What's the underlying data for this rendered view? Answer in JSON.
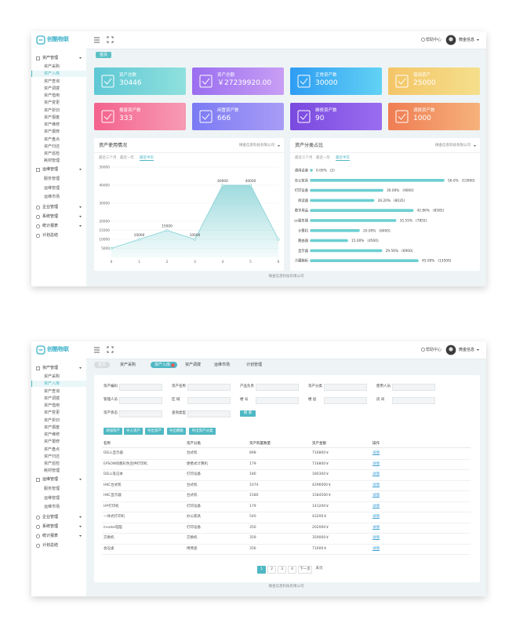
{
  "app": {
    "logo": "创酷物联",
    "help": "帮助中心",
    "user": "微金信息",
    "footer": "微金信息科技有限公司",
    "menu": [
      {
        "label": "资产管理",
        "children": [
          "资产采购",
          "资产入库",
          "资产查询",
          "资产调拨",
          "资产借用",
          "资产变更",
          "资产折旧",
          "资产报废",
          "资产维修",
          "资产报修",
          "资产盘点",
          "资产归还",
          "资产巡检",
          "耗材管理"
        ]
      },
      {
        "label": "运维管理",
        "children": [
          "服务管理",
          "运维管理",
          "运维市场"
        ]
      },
      {
        "label": "企业管理",
        "children": []
      },
      {
        "label": "系统管理",
        "children": []
      },
      {
        "label": "统计报表",
        "children": []
      },
      {
        "label": "计划总结",
        "children": []
      }
    ]
  },
  "dashboard": {
    "breadcrumb": "首页",
    "cards": [
      {
        "label": "资产总数",
        "value": "30446",
        "colors": [
          "#5ec8d5",
          "#8fe0dd"
        ]
      },
      {
        "label": "资产总额",
        "value": "￥27239920.00",
        "colors": [
          "#9a6ef0",
          "#c89ef4"
        ]
      },
      {
        "label": "正常资产数",
        "value": "30000",
        "colors": [
          "#2e9cf3",
          "#62d2f4"
        ]
      },
      {
        "label": "借用资产",
        "value": "25000",
        "colors": [
          "#f4c567",
          "#f5df8c"
        ]
      },
      {
        "label": "报废资产数",
        "value": "333",
        "colors": [
          "#f4628c",
          "#f79bb3"
        ]
      },
      {
        "label": "闲置资产数",
        "value": "666",
        "colors": [
          "#7b7af4",
          "#a89df5"
        ]
      },
      {
        "label": "维修资产数",
        "value": "90",
        "colors": [
          "#7a49df",
          "#9a6def"
        ]
      },
      {
        "label": "调拨资产数",
        "value": "1000",
        "colors": [
          "#ef7d53",
          "#f6b27b"
        ]
      }
    ],
    "usage": {
      "type": "area",
      "title": "资产使用情况",
      "company": "微金信息科技有限公司",
      "periods": [
        "最近三个月",
        "最近一年",
        "最近半年"
      ],
      "x": [
        0,
        1,
        2,
        3,
        4,
        5,
        6
      ],
      "values": [
        5000,
        10000,
        15000,
        10000,
        40000,
        40000,
        10000
      ],
      "xlim": [
        0,
        6
      ],
      "xticks": [
        0,
        1,
        2,
        3,
        4,
        5,
        6
      ],
      "ylim": [
        0,
        50000
      ],
      "yticks": [
        5000,
        10000,
        15000,
        20000,
        30000,
        40000,
        50000
      ],
      "color": "#7fcfd3"
    },
    "categories": {
      "type": "bar",
      "orientation": "horizontal",
      "title": "资产分类占比",
      "company": "微金信息科技有限公司",
      "periods": [
        "最近三个月",
        "最近一年",
        "最近半年"
      ],
      "categories": [
        "通用设备",
        "办公家具",
        "打印设备",
        "阅读器",
        "数字用品",
        "oc服务器",
        "计算机",
        "路由器",
        "显示器",
        "冷藏箱柜"
      ],
      "values": [
        0,
        56,
        30,
        26.2,
        42.86,
        35.55,
        20,
        15,
        29.56,
        45
      ],
      "value_labels": [
        "0.00%",
        "56.0%",
        "30.00%",
        "26.20%",
        "42.86%",
        "35.55%",
        "20.00%",
        "15.00%",
        "29.56%",
        "45.00%"
      ],
      "count_labels": [
        "(2)",
        "(15000)",
        "(9000)",
        "(8035)",
        "(8585)",
        "(7855)",
        "(6000)",
        "(4500)",
        "(6900)",
        "(13500)"
      ],
      "xlim": [
        0,
        60
      ],
      "color": "#6ccfd2"
    }
  },
  "list": {
    "tabs": [
      "首页",
      "资产采购",
      "资产入库",
      "资产调拨",
      "运维市场",
      "计划管理"
    ],
    "filters": [
      "资产编码",
      "资产名称",
      "产品负责",
      "资产分类",
      "使用人员",
      "管理人员",
      "区 域",
      "楼 号",
      "楼 层",
      "房 间",
      "资产状态",
      "查询类型"
    ],
    "search": "搜 索",
    "actions": [
      "添加资产",
      "导入资产",
      "导出资产",
      "导出模板",
      "导出资产分类"
    ],
    "table": {
      "columns": [
        "名称",
        "资产分类",
        "资产购置数量",
        "资产金额",
        "操作"
      ],
      "rows": [
        [
          "DELL显示器",
          "台式机",
          "898",
          "716800￥",
          "详情"
        ],
        [
          "EPSON喷墨彩色连供打印机",
          "便携式计算机",
          "179",
          "716800￥",
          "详情"
        ],
        [
          "DELL笔记本",
          "打印设备",
          "180",
          "180300￥",
          "详情"
        ],
        [
          "HKC台式机",
          "台式机",
          "1074",
          "4296000￥",
          "详情"
        ],
        [
          "HKC显示器",
          "台式机",
          "1580",
          "1584500￥",
          "详情"
        ],
        [
          "HP打印机",
          "打印设备",
          "179",
          "143200￥",
          "详情"
        ],
        [
          "一体式打印机",
          "办公家具",
          "540",
          "43200￥",
          "详情"
        ],
        [
          "invoke电脑",
          "打印设备",
          "350",
          "202000￥",
          "详情"
        ],
        [
          "交换机",
          "交换机",
          "359",
          "359000￥",
          "详情"
        ],
        [
          "会议桌",
          "椅凳类",
          "356",
          "71600￥",
          "详情"
        ]
      ]
    },
    "pagination": [
      "1",
      "2",
      "3",
      "4",
      "下一页",
      "末页"
    ]
  }
}
